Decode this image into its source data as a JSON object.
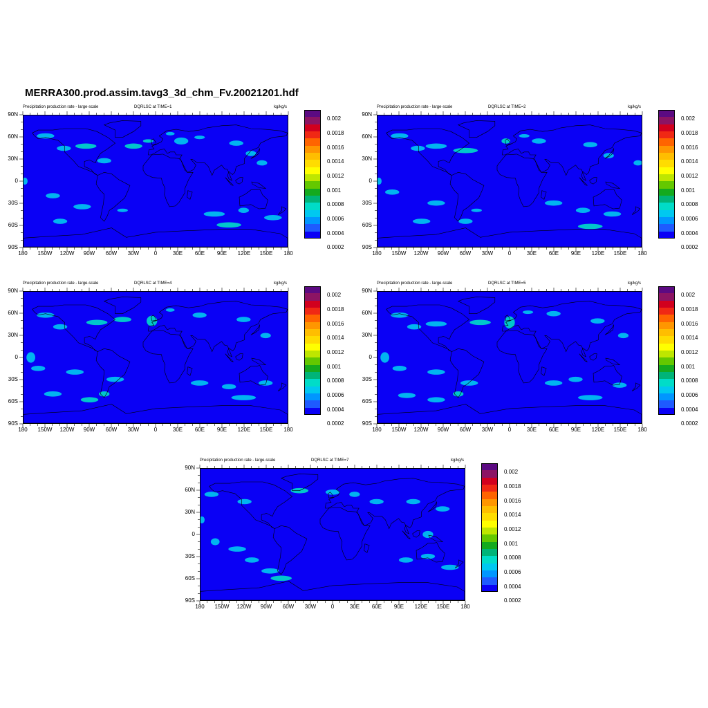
{
  "title": "MERRA300.prod.assim.tavg3_3d_chm_Fv.20021201.hdf",
  "panels": [
    {
      "left_label": "Precipitation production rate - large-scale",
      "center_label": "DQRLSC at TIME=1",
      "units": "kg/kg/s"
    },
    {
      "left_label": "Precipitation production rate - large-scale",
      "center_label": "DQRLSC at TIME=2",
      "units": "kg/kg/s"
    },
    {
      "left_label": "Precipitation production rate - large-scale",
      "center_label": "DQRLSC at TIME=4",
      "units": "kg/kg/s"
    },
    {
      "left_label": "Precipitation production rate - large-scale",
      "center_label": "DQRLSC at TIME=5",
      "units": "kg/kg/s"
    },
    {
      "left_label": "Precipitation production rate - large-scale",
      "center_label": "DQRLSC at TIME=7",
      "units": "kg/kg/s"
    }
  ],
  "lat_ticks": [
    "90N",
    "60N",
    "30N",
    "0",
    "30S",
    "60S",
    "90S"
  ],
  "lon_ticks": [
    "180",
    "150W",
    "120W",
    "90W",
    "60W",
    "30W",
    "0",
    "30E",
    "60E",
    "90E",
    "120E",
    "150E",
    "180"
  ],
  "colorbar": {
    "labels": [
      "0.002",
      "0.0018",
      "0.0016",
      "0.0014",
      "0.0012",
      "0.001",
      "0.0008",
      "0.0006",
      "0.0004",
      "0.0002"
    ],
    "colors": [
      "#5c0a82",
      "#8c1464",
      "#d2001e",
      "#f02814",
      "#ff6400",
      "#ff9600",
      "#ffbe00",
      "#ffdc00",
      "#ffff00",
      "#bee600",
      "#64c800",
      "#14aa1e",
      "#00b478",
      "#00dcc8",
      "#00c8f0",
      "#0096ff",
      "#1e5aff",
      "#0a00f5"
    ]
  },
  "colors": {
    "background_field": "#0a00f5",
    "coastline": "#000000",
    "precip_low": "#00c8f0",
    "precip_mid": "#00dcc8",
    "precip_high": "#64c800"
  }
}
